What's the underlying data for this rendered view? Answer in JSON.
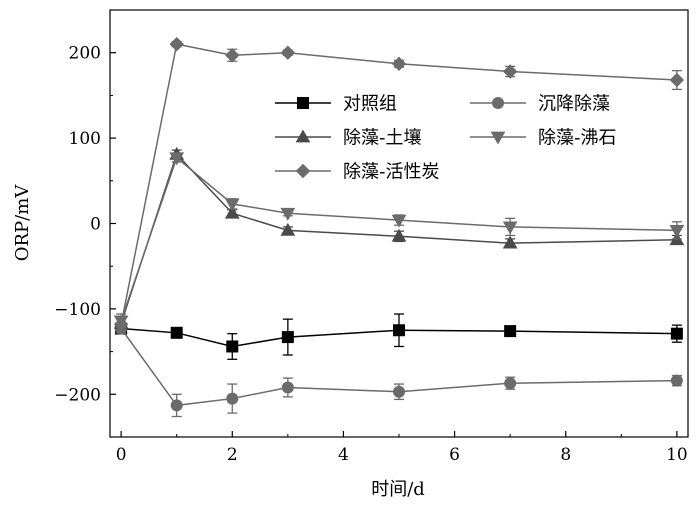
{
  "chart_data": {
    "type": "line",
    "xlabel": "时间/d",
    "ylabel": "ORP/mV",
    "xlim": [
      -0.2,
      10.2
    ],
    "ylim": [
      -250,
      250
    ],
    "xticks": [
      0,
      2,
      4,
      6,
      8,
      10
    ],
    "yticks": [
      -200,
      -100,
      0,
      100,
      200
    ],
    "xtick_labels": [
      "0",
      "2",
      "4",
      "6",
      "8",
      "10"
    ],
    "ytick_labels": [
      "−200",
      "−100",
      "0",
      "100",
      "200"
    ],
    "grid": false,
    "legend_position": "upper-right",
    "series": [
      {
        "name": "对照组",
        "marker": "square",
        "color": "#000000",
        "points": [
          {
            "x": 0,
            "y": -123,
            "err": 4
          },
          {
            "x": 1,
            "y": -128,
            "err": 0
          },
          {
            "x": 2,
            "y": -144,
            "err": 15
          },
          {
            "x": 3,
            "y": -133,
            "err": 21
          },
          {
            "x": 5,
            "y": -125,
            "err": 19
          },
          {
            "x": 7,
            "y": -126,
            "err": 0
          },
          {
            "x": 10,
            "y": -129,
            "err": 10
          }
        ]
      },
      {
        "name": "沉降除藻",
        "marker": "circle",
        "color": "#6b6b6b",
        "points": [
          {
            "x": 0,
            "y": -123,
            "err": 5
          },
          {
            "x": 1,
            "y": -213,
            "err": 13
          },
          {
            "x": 2,
            "y": -205,
            "err": 17
          },
          {
            "x": 3,
            "y": -192,
            "err": 11
          },
          {
            "x": 5,
            "y": -197,
            "err": 9
          },
          {
            "x": 7,
            "y": -187,
            "err": 7
          },
          {
            "x": 10,
            "y": -184,
            "err": 6
          }
        ]
      },
      {
        "name": "除藻-土壤",
        "marker": "triangle-up",
        "color": "#4a4a4a",
        "points": [
          {
            "x": 0,
            "y": -117,
            "err": 6
          },
          {
            "x": 1,
            "y": 81,
            "err": 5
          },
          {
            "x": 2,
            "y": 12,
            "err": 4
          },
          {
            "x": 3,
            "y": -8,
            "err": 4
          },
          {
            "x": 5,
            "y": -15,
            "err": 6
          },
          {
            "x": 7,
            "y": -23,
            "err": 5
          },
          {
            "x": 10,
            "y": -19,
            "err": 5
          }
        ]
      },
      {
        "name": "除藻-沸石",
        "marker": "triangle-down",
        "color": "#6b6b6b",
        "points": [
          {
            "x": 0,
            "y": -114,
            "err": 8
          },
          {
            "x": 1,
            "y": 77,
            "err": 5
          },
          {
            "x": 2,
            "y": 23,
            "err": 6
          },
          {
            "x": 3,
            "y": 12,
            "err": 3
          },
          {
            "x": 5,
            "y": 4,
            "err": 6
          },
          {
            "x": 7,
            "y": -4,
            "err": 10
          },
          {
            "x": 10,
            "y": -8,
            "err": 10
          }
        ]
      },
      {
        "name": "除藻-活性炭",
        "marker": "diamond",
        "color": "#6b6b6b",
        "points": [
          {
            "x": 0,
            "y": -118,
            "err": 8
          },
          {
            "x": 1,
            "y": 210,
            "err": 3
          },
          {
            "x": 2,
            "y": 197,
            "err": 7
          },
          {
            "x": 3,
            "y": 200,
            "err": 3
          },
          {
            "x": 5,
            "y": 187,
            "err": 4
          },
          {
            "x": 7,
            "y": 178,
            "err": 6
          },
          {
            "x": 10,
            "y": 168,
            "err": 11
          }
        ]
      }
    ]
  }
}
